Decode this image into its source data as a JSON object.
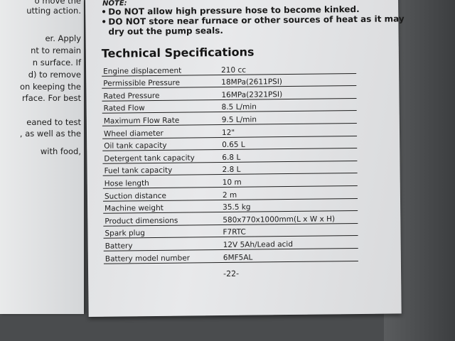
{
  "left_page": {
    "lines": [
      "o move the",
      "utting action.",
      "er. Apply",
      "nt to remain",
      "n surface. If",
      "d) to remove",
      "on keeping the",
      "rface. For best",
      "eaned to test",
      ", as well as the",
      "with food,"
    ]
  },
  "note": {
    "title": "NOTE:",
    "bullets": [
      "Do NOT allow high pressure hose to become kinked.",
      "DO NOT store near furnace or other sources of heat as it may"
    ],
    "continuation": "dry out the pump seals."
  },
  "specs": {
    "heading": "Technical Specifications",
    "rows": [
      {
        "label": "Engine displacement",
        "value": "210 cc"
      },
      {
        "label": "Permissible Pressure",
        "value": "18MPa(2611PSI)"
      },
      {
        "label": "Rated Pressure",
        "value": "16MPa(2321PSI)"
      },
      {
        "label": "Rated Flow",
        "value": "8.5 L/min"
      },
      {
        "label": "Maximum Flow Rate",
        "value": "9.5 L/min"
      },
      {
        "label": "Wheel diameter",
        "value": "12\""
      },
      {
        "label": "Oil tank capacity",
        "value": "0.65 L"
      },
      {
        "label": "Detergent tank capacity",
        "value": "6.8 L"
      },
      {
        "label": "Fuel tank capacity",
        "value": "2.8 L"
      },
      {
        "label": "Hose length",
        "value": "10 m"
      },
      {
        "label": "Suction distance",
        "value": "2 m"
      },
      {
        "label": "Machine weight",
        "value": "35.5 kg"
      },
      {
        "label": "Product dimensions",
        "value": "580x770x1000mm(L x W x H)"
      },
      {
        "label": "Spark plug",
        "value": "F7RTC"
      },
      {
        "label": "Battery",
        "value": "12V 5Ah/Lead acid"
      },
      {
        "label": "Battery model number",
        "value": "6MF5AL"
      }
    ]
  },
  "page_number": "-22-"
}
